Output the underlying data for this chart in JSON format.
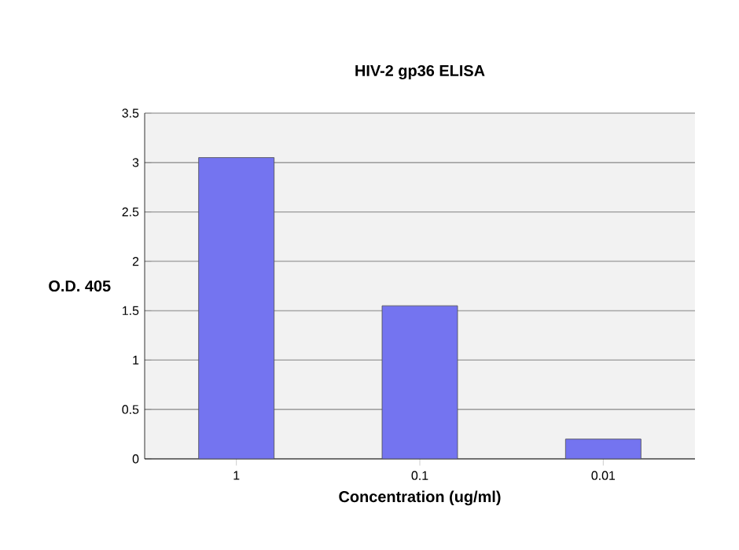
{
  "chart_data": {
    "type": "bar",
    "title": "HIV-2 gp36 ELISA",
    "xlabel": "Concentration (ug/ml)",
    "ylabel": "O.D. 405",
    "categories": [
      "1",
      "0.1",
      "0.01"
    ],
    "values": [
      3.05,
      1.55,
      0.2
    ],
    "color": "#7474f0",
    "ylim": [
      0,
      3.5
    ],
    "yticks": [
      0,
      0.5,
      1,
      1.5,
      2,
      2.5,
      3,
      3.5
    ],
    "grid": "y"
  }
}
